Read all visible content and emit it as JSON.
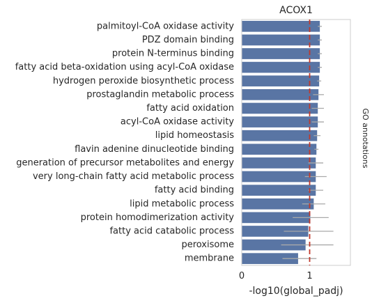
{
  "chart_data": {
    "type": "bar",
    "orientation": "horizontal",
    "title": "ACOX1",
    "xlabel": "-log10(global_padj)",
    "ylabel": "",
    "side_label": "GO annotations",
    "xlim": [
      0,
      1.6
    ],
    "xticks": [
      0,
      1
    ],
    "reference_line": 1,
    "grid": false,
    "bar_color": "#5975a4",
    "ref_line_color": "#c0392b",
    "error_color": "#a9a9a9",
    "categories": [
      "palmitoyl-CoA oxidase activity",
      "PDZ domain binding",
      "protein N-terminus binding",
      "fatty acid beta-oxidation using acyl-CoA oxidase",
      "hydrogen peroxide biosynthetic process",
      "prostaglandin metabolic process",
      "fatty acid oxidation",
      "acyl-CoA oxidase activity",
      "lipid homeostasis",
      "flavin adenine dinucleotide binding",
      "generation of precursor metabolites and energy",
      "very long-chain fatty acid metabolic process",
      "fatty acid binding",
      "lipid metabolic process",
      "protein homodimerization activity",
      "fatty acid catabolic process",
      "peroxisome",
      "membrane"
    ],
    "values": [
      1.15,
      1.15,
      1.15,
      1.15,
      1.14,
      1.13,
      1.12,
      1.12,
      1.11,
      1.1,
      1.09,
      1.09,
      1.09,
      1.06,
      1.01,
      0.98,
      0.94,
      0.83
    ],
    "err_low": [
      1.12,
      1.12,
      1.12,
      1.12,
      1.11,
      1.05,
      1.03,
      1.03,
      1.06,
      1.07,
      0.98,
      0.93,
      0.98,
      0.89,
      0.75,
      0.62,
      0.58,
      0.6
    ],
    "err_high": [
      1.18,
      1.18,
      1.18,
      1.18,
      1.17,
      1.21,
      1.21,
      1.21,
      1.16,
      1.13,
      1.2,
      1.25,
      1.2,
      1.23,
      1.28,
      1.35,
      1.35,
      1.1
    ]
  }
}
